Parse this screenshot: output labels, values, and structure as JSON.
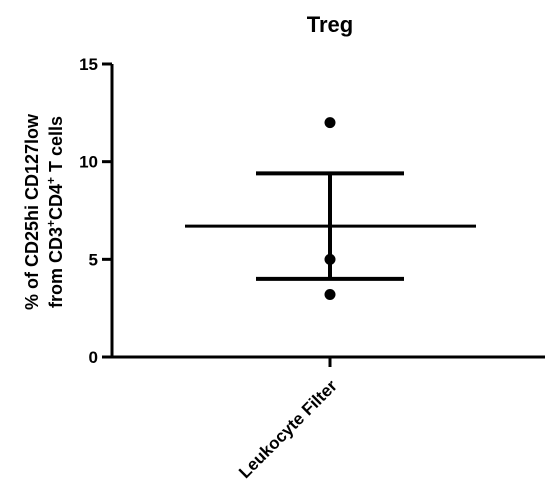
{
  "chart_data": {
    "type": "scatter",
    "title": "Treg",
    "ylabel_line1": "% of CD25hi CD127low",
    "ylabel_line2": {
      "a": "from CD3",
      "sup1": "+",
      "b": "CD4",
      "sup2": "+",
      "c": " T cells"
    },
    "xlabel": "",
    "categories": [
      "Leukocyte Filter"
    ],
    "ylim": [
      0,
      15
    ],
    "yticks": [
      0,
      5,
      10,
      15
    ],
    "points": [
      12,
      5,
      3.2
    ],
    "mean": 6.7,
    "error_upper": 9.4,
    "error_lower": 4.0,
    "grid": false,
    "legend": "none"
  }
}
